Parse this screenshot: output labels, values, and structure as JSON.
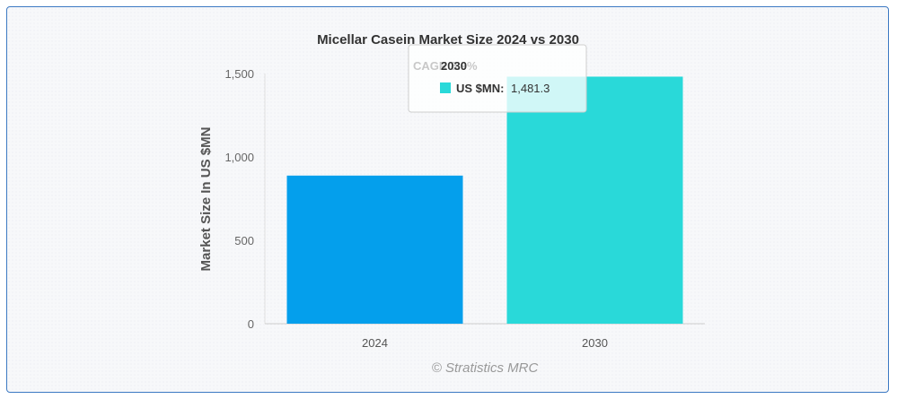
{
  "chart_data": {
    "type": "bar",
    "title": "Micellar Casein Market Size 2024 vs 2030",
    "xlabel": "",
    "ylabel": "Market Size In US $MN",
    "categories": [
      "2024",
      "2030"
    ],
    "series": [
      {
        "name": "US $MN",
        "values": [
          888,
          1481.3
        ]
      }
    ],
    "bar_colors": [
      "#049fec",
      "#29d9d9"
    ],
    "ylim": [
      0,
      1500
    ],
    "yticks": [
      0,
      500,
      1000,
      1500
    ],
    "ytick_labels": [
      "0",
      "500",
      "1,000",
      "1,500"
    ],
    "grid": false,
    "credit": "© Stratistics MRC",
    "annotation": "CAGR 8.9%",
    "tooltip": {
      "title": "2030",
      "series_label": "US $MN:",
      "value_label": "1,481.3",
      "marker_color": "#29d9d9"
    }
  }
}
